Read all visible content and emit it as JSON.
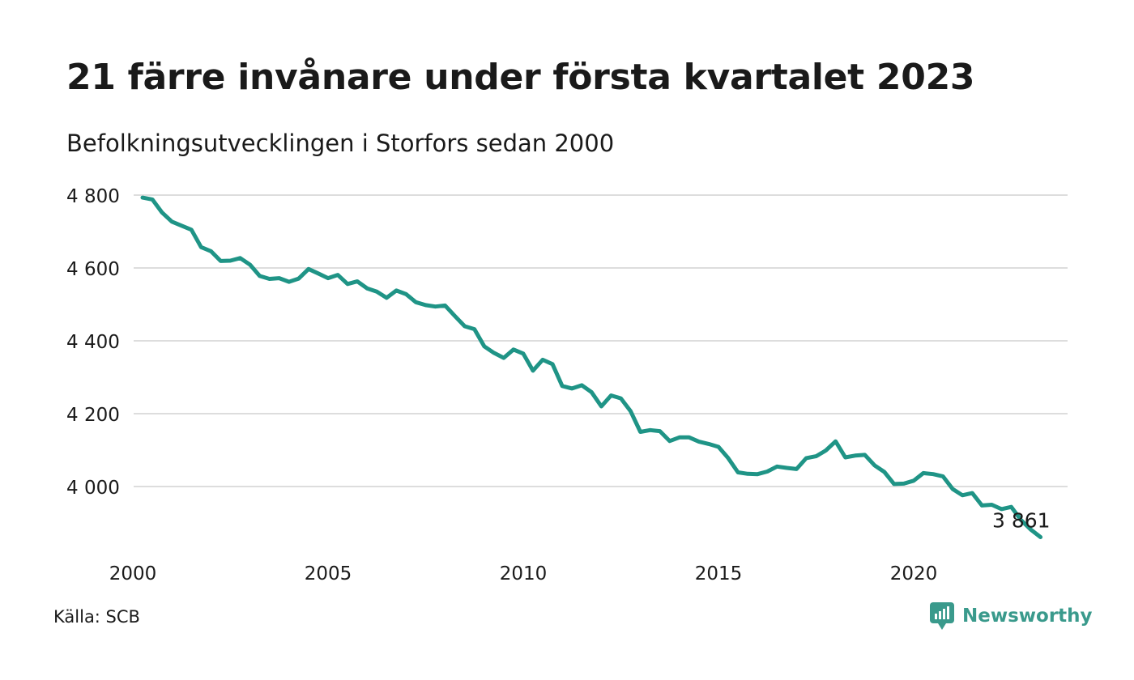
{
  "title": "21 färre invånare under första kvartalet 2023",
  "subtitle": "Befolkningsutvecklingen i Storfors sedan 2000",
  "source": "Källa: SCB",
  "brand": {
    "name": "Newsworthy",
    "icon": "newsworthy-logo-icon",
    "color": "#3a9a8c"
  },
  "chart_data": {
    "type": "line",
    "line_color": "#1f9486",
    "grid": true,
    "ylim": [
      3840,
      4820
    ],
    "y_ticks": [
      4000,
      4200,
      4400,
      4600,
      4800
    ],
    "y_tick_labels": [
      "4 000",
      "4 200",
      "4 400",
      "4 600",
      "4 800"
    ],
    "x_ticks": [
      2000,
      2005,
      2010,
      2015,
      2020
    ],
    "x_tick_labels": [
      "2000",
      "2005",
      "2010",
      "2015",
      "2020"
    ],
    "x_period": "quarter",
    "last_value_label": "3 861",
    "series": [
      {
        "values": [
          4793,
          4788,
          4752,
          4727,
          4716,
          4705,
          4657,
          4646,
          4619,
          4620,
          4627,
          4609,
          4578,
          4570,
          4572,
          4562,
          4571,
          4597,
          4585,
          4572,
          4581,
          4556,
          4563,
          4544,
          4535,
          4518,
          4538,
          4528,
          4506,
          4498,
          4494,
          4497,
          4468,
          4440,
          4432,
          4385,
          4367,
          4353,
          4376,
          4365,
          4318,
          4348,
          4336,
          4276,
          4269,
          4278,
          4259,
          4220,
          4250,
          4242,
          4207,
          4150,
          4155,
          4152,
          4125,
          4135,
          4135,
          4123,
          4117,
          4109,
          4078,
          4039,
          4035,
          4034,
          4041,
          4055,
          4051,
          4048,
          4078,
          4083,
          4099,
          4124,
          4080,
          4085,
          4087,
          4058,
          4040,
          4007,
          4008,
          4016,
          4037,
          4034,
          4028,
          3993,
          3976,
          3982,
          3948,
          3950,
          3938,
          3944,
          3908,
          3882,
          3861
        ]
      }
    ]
  }
}
